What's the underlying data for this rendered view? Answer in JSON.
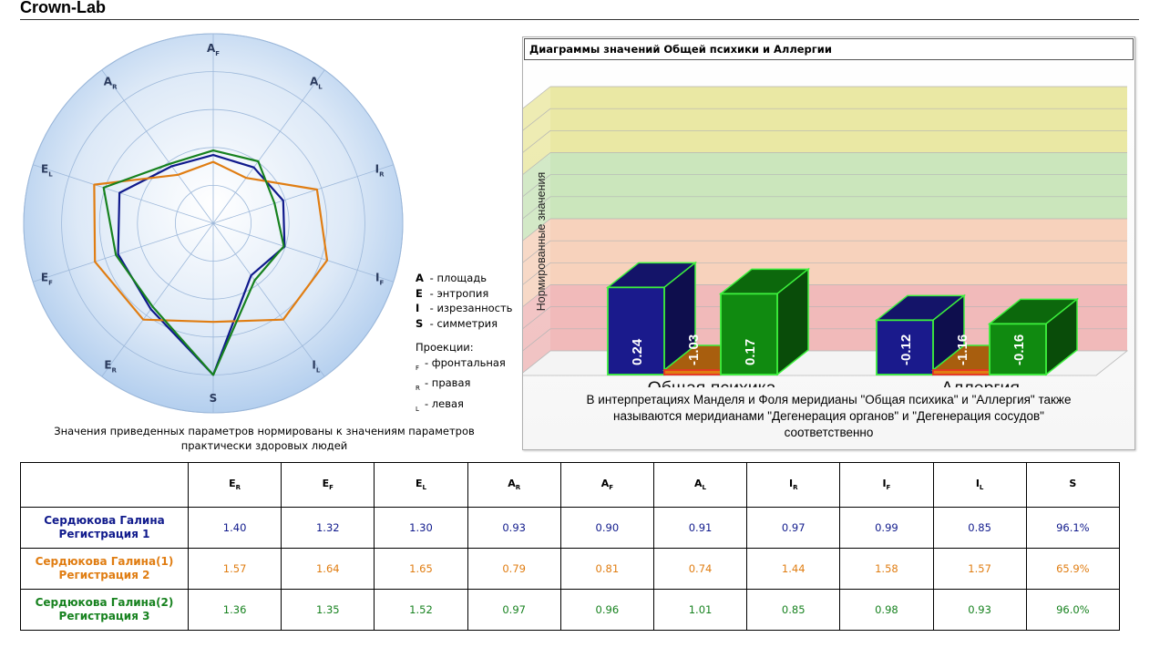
{
  "app": {
    "title": "Crown-Lab"
  },
  "radar": {
    "note_line1": "Значения приведенных параметров нормированы к значениям параметров",
    "note_line2": "практически здоровых людей",
    "legend": {
      "params": [
        {
          "key": "A",
          "text": "- площадь"
        },
        {
          "key": "E",
          "text": "- энтропия"
        },
        {
          "key": "I",
          "text": "- изрезанность"
        },
        {
          "key": "S",
          "text": "- симметрия"
        }
      ],
      "proj_title": "Проекции:",
      "projections": [
        {
          "sub": "F",
          "text": "- фронтальная"
        },
        {
          "sub": "R",
          "text": "- правая"
        },
        {
          "sub": "L",
          "text": "- левая"
        }
      ]
    }
  },
  "bar_panel": {
    "title": "Диаграммы значений Общей психики и Аллергии",
    "note_line1": "В интерпретациях Манделя и Фоля меридианы \"Общая психика\" и \"Аллергия\" также",
    "note_line2": "называются меридианами \"Дегенерация органов\" и \"Дегенерация сосудов\"",
    "note_line3": "соответственно"
  },
  "chart_data": [
    {
      "type": "radar",
      "axes": [
        {
          "main": "A",
          "sub": "F"
        },
        {
          "main": "A",
          "sub": "L"
        },
        {
          "main": "I",
          "sub": "R"
        },
        {
          "main": "I",
          "sub": "F"
        },
        {
          "main": "I",
          "sub": "L"
        },
        {
          "main": "S",
          "sub": ""
        },
        {
          "main": "E",
          "sub": "R"
        },
        {
          "main": "E",
          "sub": "F"
        },
        {
          "main": "E",
          "sub": "L"
        },
        {
          "main": "A",
          "sub": "R"
        }
      ],
      "rlim": [
        0,
        2.5
      ],
      "grid_levels": 5,
      "series": [
        {
          "color": "#101a8c",
          "values": [
            0.9,
            0.91,
            0.97,
            0.99,
            0.85,
            2.0,
            1.4,
            1.32,
            1.3,
            0.93
          ]
        },
        {
          "color": "#e07d12",
          "values": [
            0.81,
            0.74,
            1.44,
            1.58,
            1.57,
            1.3,
            1.57,
            1.64,
            1.65,
            0.79
          ]
        },
        {
          "color": "#17821f",
          "values": [
            0.96,
            1.01,
            0.85,
            0.98,
            0.93,
            2.0,
            1.36,
            1.35,
            1.52,
            0.97
          ]
        }
      ]
    },
    {
      "type": "bar",
      "ylabel": "Нормированные значения",
      "categories": [
        "Общая психика",
        "Аллергия"
      ],
      "series": [
        {
          "color": "#1a1a8c",
          "values": [
            0.24,
            -0.12
          ]
        },
        {
          "color": "#e07d12",
          "values": [
            -1.03,
            -1.16
          ]
        },
        {
          "color": "#108a10",
          "values": [
            0.17,
            -0.16
          ]
        }
      ],
      "bands": [
        "#e8e59a",
        "#c5e3b5",
        "#f6cdb5",
        "#efb3b3"
      ]
    }
  ],
  "table": {
    "columns": [
      {
        "main": "E",
        "sub": "R"
      },
      {
        "main": "E",
        "sub": "F"
      },
      {
        "main": "E",
        "sub": "L"
      },
      {
        "main": "A",
        "sub": "R"
      },
      {
        "main": "A",
        "sub": "F"
      },
      {
        "main": "A",
        "sub": "L"
      },
      {
        "main": "I",
        "sub": "R"
      },
      {
        "main": "I",
        "sub": "F"
      },
      {
        "main": "I",
        "sub": "L"
      },
      {
        "main": "S",
        "sub": ""
      }
    ],
    "rows": [
      {
        "name": "Сердюкова Галина",
        "reg": "Регистрация 1",
        "color": "#101a8c",
        "values": [
          "1.40",
          "1.32",
          "1.30",
          "0.93",
          "0.90",
          "0.91",
          "0.97",
          "0.99",
          "0.85",
          "96.1%"
        ]
      },
      {
        "name": "Сердюкова Галина(1)",
        "reg": "Регистрация 2",
        "color": "#e07d12",
        "values": [
          "1.57",
          "1.64",
          "1.65",
          "0.79",
          "0.81",
          "0.74",
          "1.44",
          "1.58",
          "1.57",
          "65.9%"
        ]
      },
      {
        "name": "Сердюкова Галина(2)",
        "reg": "Регистрация 3",
        "color": "#17821f",
        "values": [
          "1.36",
          "1.35",
          "1.52",
          "0.97",
          "0.96",
          "1.01",
          "0.85",
          "0.98",
          "0.93",
          "96.0%"
        ]
      }
    ]
  }
}
